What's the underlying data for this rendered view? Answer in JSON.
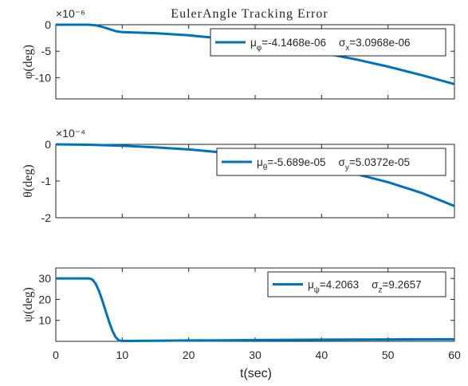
{
  "figure": {
    "title": "EulerAngle Tracking Error",
    "xlabel": "t(sec)",
    "series_color": "#0072bd"
  },
  "chart_data": [
    {
      "type": "line",
      "ylabel": "φ(deg)",
      "exponent": "×10⁻⁶",
      "xlim": [
        0,
        60
      ],
      "ylim": [
        -14,
        0
      ],
      "xticks": [
        0,
        10,
        20,
        30,
        40,
        50,
        60
      ],
      "yticks": [
        0,
        -5,
        -10
      ],
      "ytick_labels": [
        "0",
        "-5",
        "-10"
      ],
      "show_xticklabels": false,
      "legend_position": "top-right",
      "legend": {
        "mu_sym": "μ",
        "mu_sub": "φ",
        "mu_val": "=-4.1468e-06",
        "sigma_sym": "σ",
        "sigma_sub": "x",
        "sigma_val": "=3.0968e-06"
      },
      "series": [
        {
          "x": [
            0,
            5,
            6,
            7,
            8,
            9,
            10,
            15,
            20,
            25,
            30,
            35,
            40,
            45,
            50,
            55,
            60
          ],
          "values": [
            0,
            0,
            -0.1,
            -0.4,
            -0.8,
            -1.2,
            -1.4,
            -1.6,
            -2.0,
            -2.6,
            -3.4,
            -4.3,
            -5.3,
            -6.5,
            -7.9,
            -9.5,
            -11.2
          ]
        }
      ]
    },
    {
      "type": "line",
      "ylabel": "θ(deg)",
      "exponent": "×10⁻⁴",
      "xlim": [
        0,
        60
      ],
      "ylim": [
        -2,
        0
      ],
      "xticks": [
        0,
        10,
        20,
        30,
        40,
        50,
        60
      ],
      "yticks": [
        0,
        -1,
        -2
      ],
      "ytick_labels": [
        "0",
        "-1",
        "-2"
      ],
      "show_xticklabels": false,
      "legend_position": "top-right",
      "legend": {
        "mu_sym": "μ",
        "mu_sub": "θ",
        "mu_val": "=-5.689e-05",
        "sigma_sym": "σ",
        "sigma_sub": "y",
        "sigma_val": "=5.0372e-05"
      },
      "series": [
        {
          "x": [
            0,
            5,
            10,
            15,
            20,
            25,
            30,
            35,
            40,
            45,
            50,
            55,
            60
          ],
          "values": [
            0,
            -0.01,
            -0.04,
            -0.08,
            -0.14,
            -0.22,
            -0.32,
            -0.45,
            -0.61,
            -0.8,
            -1.03,
            -1.32,
            -1.68
          ]
        }
      ]
    },
    {
      "type": "line",
      "ylabel": "ψ(deg)",
      "exponent": "",
      "xlim": [
        0,
        60
      ],
      "ylim": [
        0,
        35
      ],
      "xticks": [
        0,
        10,
        20,
        30,
        40,
        50,
        60
      ],
      "xtick_labels": [
        "0",
        "10",
        "20",
        "30",
        "40",
        "50",
        "60"
      ],
      "yticks": [
        10,
        20,
        30
      ],
      "ytick_labels": [
        "10",
        "20",
        "30"
      ],
      "show_xticklabels": true,
      "legend_position": "top-right",
      "legend": {
        "mu_sym": "μ",
        "mu_sub": "ψ",
        "mu_val": "=4.2063",
        "sigma_sym": "σ",
        "sigma_sub": "z",
        "sigma_val": "=9.2657"
      },
      "series": [
        {
          "x": [
            0,
            5,
            5.5,
            6,
            6.5,
            7,
            7.5,
            8,
            8.5,
            9,
            9.5,
            10,
            15,
            20,
            25,
            30,
            40,
            50,
            60
          ],
          "values": [
            30,
            30,
            29.5,
            27.5,
            24,
            19.5,
            14.5,
            9.5,
            5.2,
            2.0,
            0.4,
            0.2,
            0.3,
            0.4,
            0.5,
            0.6,
            0.8,
            0.9,
            1.0
          ]
        }
      ]
    }
  ]
}
